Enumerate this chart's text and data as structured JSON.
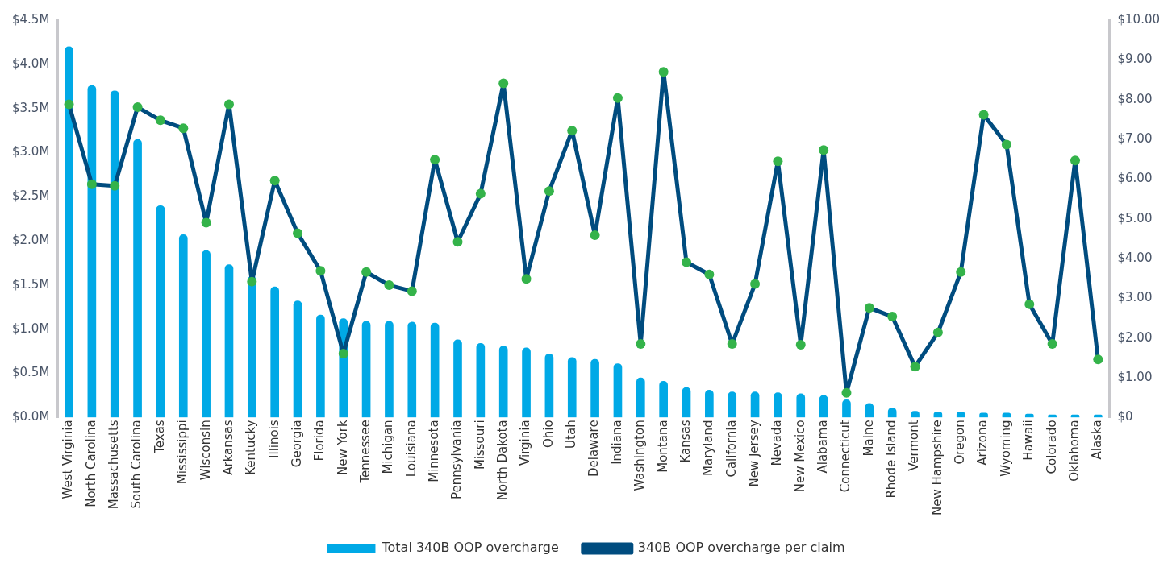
{
  "chart_data": {
    "type": "bar",
    "categories": [
      "West Virginia",
      "North Carolina",
      "Massachusetts",
      "South Carolina",
      "Texas",
      "Mississippi",
      "Wisconsin",
      "Arkansas",
      "Kentucky",
      "Illinois",
      "Georgia",
      "Florida",
      "New York",
      "Tennessee",
      "Michigan",
      "Louisiana",
      "Minnesota",
      "Pennsylvania",
      "Missouri",
      "North Dakota",
      "Virginia",
      "Ohio",
      "Utah",
      "Delaware",
      "Indiana",
      "Washington",
      "Montana",
      "Kansas",
      "Maryland",
      "California",
      "New Jersey",
      "Nevada",
      "New Mexico",
      "Alabama",
      "Connecticut",
      "Maine",
      "Rhode Island",
      "Vermont",
      "New Hampshire",
      "Oregon",
      "Arizona",
      "Wyoming",
      "Hawaii",
      "Colorado",
      "Oklahoma",
      "Alaska"
    ],
    "series": [
      {
        "name": "Total 340B OOP overcharge",
        "color": "#00a9e6",
        "values": [
          4.2,
          3.76,
          3.7,
          3.15,
          2.4,
          2.07,
          1.89,
          1.73,
          1.6,
          1.48,
          1.32,
          1.16,
          1.12,
          1.09,
          1.09,
          1.08,
          1.07,
          0.88,
          0.84,
          0.81,
          0.79,
          0.72,
          0.68,
          0.66,
          0.61,
          0.45,
          0.41,
          0.34,
          0.31,
          0.29,
          0.29,
          0.28,
          0.27,
          0.25,
          0.2,
          0.16,
          0.11,
          0.07,
          0.06,
          0.06,
          0.05,
          0.05,
          0.04,
          0.03,
          0.03,
          0.03
        ]
      },
      {
        "type": "line",
        "axis": "y2",
        "name": "340B OOP overcharge per claim",
        "color": "#004c7f",
        "values": [
          7.88,
          5.87,
          5.83,
          7.81,
          7.48,
          7.28,
          4.9,
          7.88,
          3.42,
          5.96,
          4.64,
          3.69,
          1.61,
          3.66,
          3.33,
          3.18,
          6.49,
          4.42,
          5.63,
          8.41,
          3.49,
          5.7,
          7.22,
          4.59,
          8.04,
          1.85,
          8.7,
          3.91,
          3.6,
          1.85,
          3.36,
          6.45,
          1.83,
          6.73,
          0.62,
          2.76,
          2.54,
          1.28,
          2.14,
          3.66,
          7.62,
          6.87,
          2.85,
          1.85,
          6.47,
          1.46
        ]
      }
    ],
    "ylim": [
      0,
      4.5
    ],
    "yticks": [
      {
        "value": 0,
        "label": "$0.0M"
      },
      {
        "value": 0.5,
        "label": "$0.5M"
      },
      {
        "value": 1,
        "label": "$1.0M"
      },
      {
        "value": 1.5,
        "label": "$1.5M"
      },
      {
        "value": 2,
        "label": "$2.0M"
      },
      {
        "value": 2.5,
        "label": "$2.5M"
      },
      {
        "value": 3,
        "label": "$3.0M"
      },
      {
        "value": 3.5,
        "label": "$3.5M"
      },
      {
        "value": 4,
        "label": "$4.0M"
      },
      {
        "value": 4.5,
        "label": "$4.5M"
      }
    ],
    "y2lim": [
      0,
      10
    ],
    "y2ticks": [
      {
        "value": 0,
        "label": "$0"
      },
      {
        "value": 1,
        "label": "$1.00"
      },
      {
        "value": 2,
        "label": "$2.00"
      },
      {
        "value": 3,
        "label": "$3.00"
      },
      {
        "value": 4,
        "label": "$4.00"
      },
      {
        "value": 5,
        "label": "$5.00"
      },
      {
        "value": 6,
        "label": "$6.00"
      },
      {
        "value": 7,
        "label": "$7.00"
      },
      {
        "value": 8,
        "label": "$8.00"
      },
      {
        "value": 9,
        "label": "$9.00"
      },
      {
        "value": 10,
        "label": "$10.00"
      }
    ],
    "grid": false,
    "legend": "bottom",
    "marker": "circle",
    "line_style": "solid"
  }
}
